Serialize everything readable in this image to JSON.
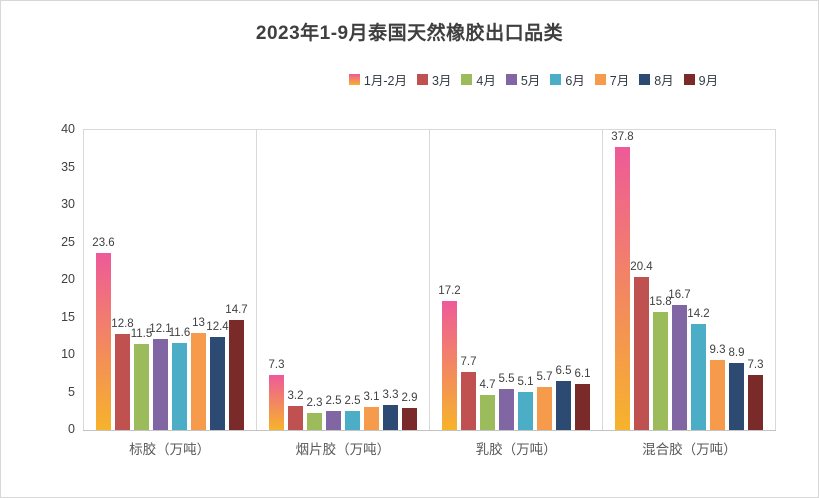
{
  "chart_data": {
    "type": "bar",
    "title": "2023年1-9月泰国天然橡胶出口品类",
    "categories": [
      "标胶（万吨）",
      "烟片胶（万吨）",
      "乳胶（万吨）",
      "混合胶（万吨）"
    ],
    "series": [
      {
        "name": "1月-2月",
        "color_top": "#ee5a99",
        "color_bottom": "#f7b32b",
        "values": [
          23.6,
          7.3,
          17.2,
          37.8
        ]
      },
      {
        "name": "3月",
        "color": "#bf5251",
        "values": [
          12.8,
          3.2,
          7.7,
          20.4
        ]
      },
      {
        "name": "4月",
        "color": "#9cbb5b",
        "values": [
          11.5,
          2.3,
          4.7,
          15.8
        ]
      },
      {
        "name": "5月",
        "color": "#8067a3",
        "values": [
          12.1,
          2.5,
          5.5,
          16.7
        ]
      },
      {
        "name": "6月",
        "color": "#4cadc7",
        "values": [
          11.6,
          2.5,
          5.1,
          14.2
        ]
      },
      {
        "name": "7月",
        "color": "#f69a4b",
        "values": [
          13,
          3.1,
          5.7,
          9.3
        ]
      },
      {
        "name": "8月",
        "color": "#2c4a72",
        "values": [
          12.4,
          3.3,
          6.5,
          8.9
        ]
      },
      {
        "name": "9月",
        "color": "#7a2b29",
        "values": [
          14.7,
          2.9,
          6.1,
          7.3
        ]
      }
    ],
    "y_axis": {
      "min": 0,
      "max": 40,
      "step": 5,
      "ticks": [
        0,
        5,
        10,
        15,
        20,
        25,
        30,
        35,
        40
      ]
    },
    "legend_position": "top",
    "grid": "category-separators-only",
    "colors": {
      "title_text": "#3f3f3f",
      "axis_text": "#404040",
      "category_text": "#595959",
      "separator_line": "#d9d9d9"
    }
  }
}
